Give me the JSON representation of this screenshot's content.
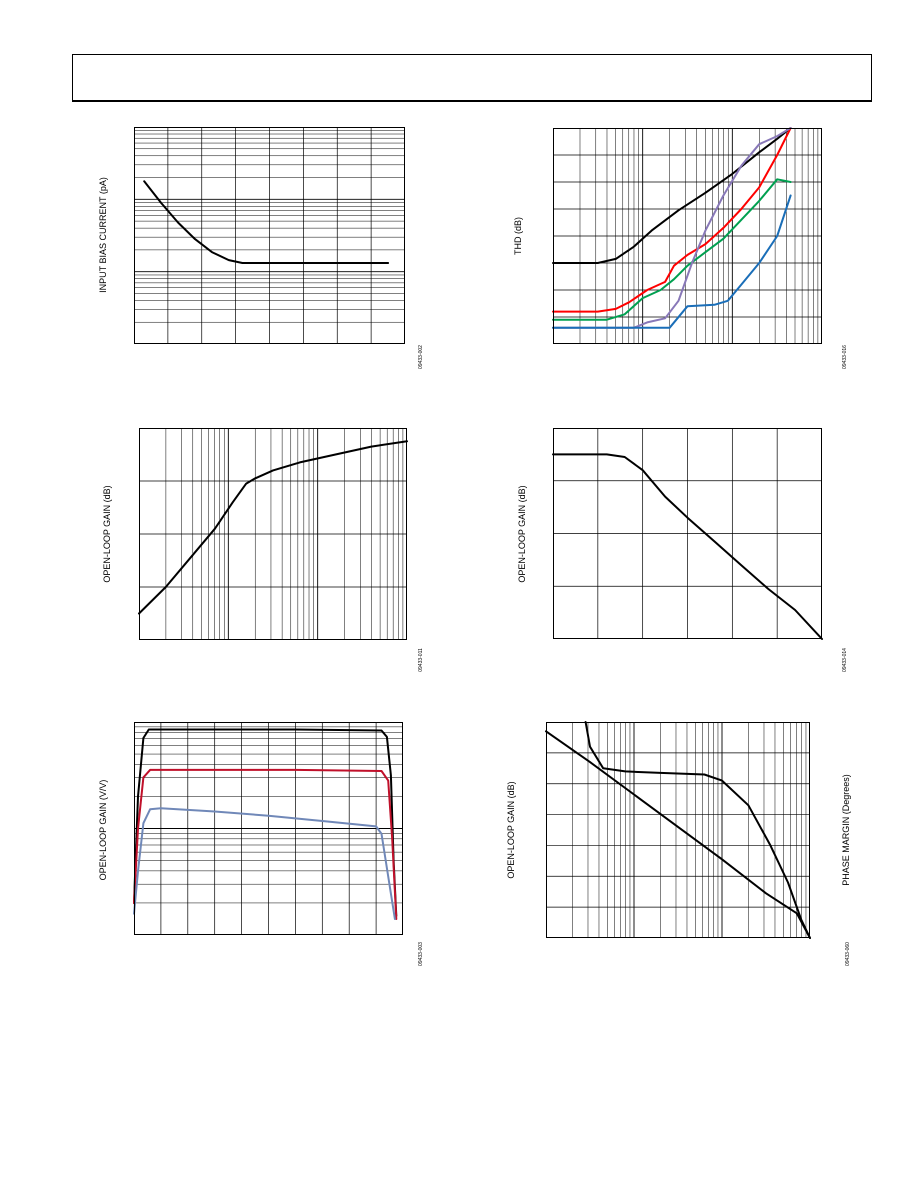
{
  "charts": [
    {
      "id": "bias",
      "type": "line",
      "ylabel": "INPUT BIAS CURRENT (pA)",
      "fig": "09433-002",
      "x_axis": {
        "scale": "linear",
        "range": [
          0,
          8
        ],
        "ticks": [
          1,
          2,
          3,
          4,
          5,
          6,
          7
        ]
      },
      "y_axis": {
        "scale": "log",
        "decades": 3
      },
      "series": [
        {
          "color": "#000000",
          "points": [
            [
              0.3,
              2.25
            ],
            [
              0.8,
              1.95
            ],
            [
              1.3,
              1.68
            ],
            [
              1.8,
              1.45
            ],
            [
              2.3,
              1.27
            ],
            [
              2.8,
              1.16
            ],
            [
              3.2,
              1.12
            ],
            [
              4,
              1.12
            ],
            [
              5,
              1.12
            ],
            [
              6,
              1.12
            ],
            [
              7,
              1.12
            ],
            [
              7.5,
              1.12
            ]
          ]
        }
      ]
    },
    {
      "id": "thd",
      "type": "line",
      "ylabel": "THD (dB)",
      "fig": "09433-016",
      "x_axis": {
        "scale": "log",
        "decades": 3
      },
      "y_axis": {
        "scale": "linear",
        "range": [
          0,
          8
        ],
        "ticks": [
          1,
          2,
          3,
          4,
          5,
          6,
          7
        ]
      },
      "series": [
        {
          "color": "#000000",
          "points": [
            [
              0,
              3
            ],
            [
              0.3,
              3
            ],
            [
              0.5,
              3
            ],
            [
              0.7,
              3.15
            ],
            [
              0.9,
              3.6
            ],
            [
              1.1,
              4.2
            ],
            [
              1.4,
              4.95
            ],
            [
              1.7,
              5.6
            ],
            [
              2,
              6.3
            ],
            [
              2.3,
              7.1
            ],
            [
              2.5,
              7.6
            ],
            [
              2.65,
              8
            ]
          ]
        },
        {
          "color": "#ff0000",
          "points": [
            [
              0,
              1.2
            ],
            [
              0.5,
              1.2
            ],
            [
              0.7,
              1.3
            ],
            [
              0.85,
              1.55
            ],
            [
              1.05,
              2
            ],
            [
              1.25,
              2.3
            ],
            [
              1.35,
              2.9
            ],
            [
              1.5,
              3.3
            ],
            [
              1.7,
              3.7
            ],
            [
              1.9,
              4.3
            ],
            [
              2.1,
              5
            ],
            [
              2.3,
              5.8
            ],
            [
              2.5,
              7
            ],
            [
              2.65,
              8
            ]
          ]
        },
        {
          "color": "#00a050",
          "points": [
            [
              0,
              0.9
            ],
            [
              0.6,
              0.9
            ],
            [
              0.8,
              1.1
            ],
            [
              1,
              1.7
            ],
            [
              1.2,
              2
            ],
            [
              1.35,
              2.4
            ],
            [
              1.5,
              2.9
            ],
            [
              1.7,
              3.4
            ],
            [
              1.9,
              3.9
            ],
            [
              2.1,
              4.6
            ],
            [
              2.3,
              5.3
            ],
            [
              2.5,
              6.1
            ],
            [
              2.65,
              6
            ]
          ]
        },
        {
          "color": "#8878b8",
          "points": [
            [
              0,
              0.6
            ],
            [
              0.9,
              0.6
            ],
            [
              1.05,
              0.8
            ],
            [
              1.25,
              0.95
            ],
            [
              1.4,
              1.6
            ],
            [
              1.55,
              3
            ],
            [
              1.7,
              4.2
            ],
            [
              1.9,
              5.5
            ],
            [
              2.1,
              6.6
            ],
            [
              2.3,
              7.4
            ],
            [
              2.5,
              7.7
            ],
            [
              2.65,
              8
            ]
          ]
        },
        {
          "color": "#1a6eb8",
          "points": [
            [
              0,
              0.6
            ],
            [
              1.3,
              0.6
            ],
            [
              1.5,
              1.4
            ],
            [
              1.8,
              1.45
            ],
            [
              1.95,
              1.6
            ],
            [
              2.1,
              2.2
            ],
            [
              2.3,
              3
            ],
            [
              2.5,
              4
            ],
            [
              2.65,
              5.5
            ]
          ]
        }
      ]
    },
    {
      "id": "olg_z",
      "type": "line",
      "ylabel": "OPEN-LOOP GAIN (dB)",
      "fig": "09433-011",
      "x_axis": {
        "scale": "log",
        "decades": 3
      },
      "y_axis": {
        "scale": "linear",
        "range": [
          0,
          4
        ],
        "ticks": [
          1,
          2,
          3
        ]
      },
      "series": [
        {
          "color": "#000000",
          "points": [
            [
              0,
              0.5
            ],
            [
              0.3,
              1
            ],
            [
              0.6,
              1.6
            ],
            [
              0.85,
              2.1
            ],
            [
              1.05,
              2.6
            ],
            [
              1.2,
              2.95
            ],
            [
              1.3,
              3.05
            ],
            [
              1.5,
              3.2
            ],
            [
              1.8,
              3.35
            ],
            [
              2.2,
              3.5
            ],
            [
              2.6,
              3.65
            ],
            [
              3,
              3.75
            ]
          ]
        }
      ]
    },
    {
      "id": "olg_freq",
      "type": "line",
      "ylabel": "OPEN-LOOP GAIN (dB)",
      "fig": "09433-014",
      "x_axis": {
        "scale": "linear",
        "range": [
          0,
          6
        ],
        "ticks": [
          1,
          2,
          3,
          4,
          5
        ]
      },
      "y_axis": {
        "scale": "linear",
        "range": [
          0,
          4
        ],
        "ticks": [
          1,
          2,
          3
        ]
      },
      "series": [
        {
          "color": "#000000",
          "points": [
            [
              0,
              3.5
            ],
            [
              1.2,
              3.5
            ],
            [
              1.6,
              3.45
            ],
            [
              2,
              3.2
            ],
            [
              2.5,
              2.7
            ],
            [
              3,
              2.3
            ],
            [
              3.6,
              1.85
            ],
            [
              4.2,
              1.4
            ],
            [
              4.8,
              0.95
            ],
            [
              5.4,
              0.55
            ],
            [
              6,
              0
            ]
          ]
        }
      ]
    },
    {
      "id": "olg_vv",
      "type": "line",
      "ylabel": "OPEN-LOOP GAIN (V/V)",
      "fig": "09433-003",
      "x_axis": {
        "scale": "linear",
        "range": [
          0,
          10
        ],
        "ticks": [
          1,
          2,
          3,
          4,
          5,
          6,
          7,
          8,
          9
        ]
      },
      "y_axis": {
        "scale": "log",
        "decades": 2
      },
      "series": [
        {
          "color": "#000000",
          "points": [
            [
              0,
              0.3
            ],
            [
              0.15,
              1.3
            ],
            [
              0.35,
              1.85
            ],
            [
              0.55,
              1.93
            ],
            [
              2,
              1.93
            ],
            [
              6,
              1.93
            ],
            [
              9.2,
              1.92
            ],
            [
              9.4,
              1.86
            ],
            [
              9.55,
              1.5
            ],
            [
              9.65,
              0.7
            ],
            [
              9.75,
              0.18
            ]
          ]
        },
        {
          "color": "#c0102a",
          "points": [
            [
              0,
              0.3
            ],
            [
              0.15,
              1
            ],
            [
              0.35,
              1.48
            ],
            [
              0.6,
              1.55
            ],
            [
              2,
              1.55
            ],
            [
              6,
              1.55
            ],
            [
              9.2,
              1.54
            ],
            [
              9.45,
              1.45
            ],
            [
              9.6,
              0.9
            ],
            [
              9.75,
              0.15
            ]
          ]
        },
        {
          "color": "#7088b8",
          "points": [
            [
              0,
              0.2
            ],
            [
              0.15,
              0.6
            ],
            [
              0.35,
              1.05
            ],
            [
              0.6,
              1.18
            ],
            [
              1,
              1.19
            ],
            [
              3,
              1.16
            ],
            [
              5,
              1.12
            ],
            [
              7,
              1.07
            ],
            [
              9,
              1.02
            ],
            [
              9.2,
              0.95
            ],
            [
              9.45,
              0.55
            ],
            [
              9.7,
              0.15
            ]
          ]
        }
      ]
    },
    {
      "id": "olg_phase",
      "type": "line",
      "ylabel": "OPEN-LOOP GAIN (dB)",
      "ylabel2": "PHASE MARGIN (Degrees)",
      "fig": "09433-060",
      "x_axis": {
        "scale": "log",
        "decades": 3
      },
      "y_axis": {
        "scale": "linear",
        "range": [
          0,
          7
        ],
        "ticks": [
          1,
          2,
          3,
          4,
          5,
          6
        ]
      },
      "series": [
        {
          "color": "#000000",
          "points": [
            [
              0,
              6.7
            ],
            [
              0.5,
              5.7
            ],
            [
              1,
              4.65
            ],
            [
              1.5,
              3.6
            ],
            [
              2,
              2.55
            ],
            [
              2.5,
              1.45
            ],
            [
              2.85,
              0.8
            ],
            [
              3,
              0
            ]
          ]
        },
        {
          "color": "#000000",
          "points": [
            [
              0.45,
              7
            ],
            [
              0.5,
              6.2
            ],
            [
              0.65,
              5.5
            ],
            [
              0.9,
              5.4
            ],
            [
              1.3,
              5.35
            ],
            [
              1.8,
              5.3
            ],
            [
              2,
              5.1
            ],
            [
              2.3,
              4.3
            ],
            [
              2.55,
              3
            ],
            [
              2.75,
              1.8
            ],
            [
              2.9,
              0.6
            ],
            [
              3,
              0
            ]
          ]
        }
      ]
    }
  ]
}
